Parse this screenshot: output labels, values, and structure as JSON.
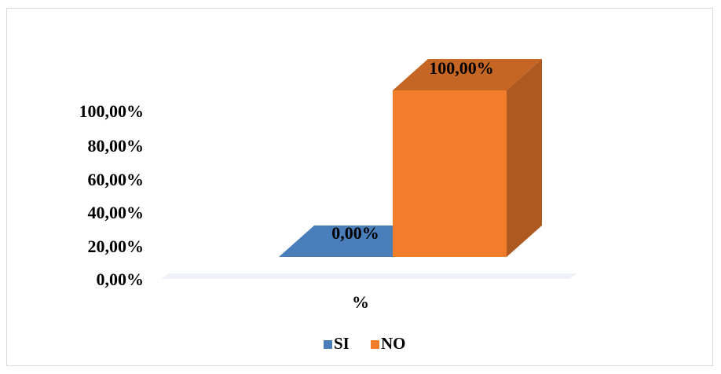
{
  "chart_data": {
    "type": "bar",
    "style": "3d-column",
    "categories": [
      "%"
    ],
    "series": [
      {
        "name": "SI",
        "values": [
          0.0
        ],
        "color": "#4a7ebb",
        "label": "0,00%"
      },
      {
        "name": "NO",
        "values": [
          100.0
        ],
        "color": "#f07c2c",
        "label": "100,00%"
      }
    ],
    "ylim": [
      0,
      100
    ],
    "y_ticks": [
      "0,00%",
      "20,00%",
      "40,00%",
      "60,00%",
      "80,00%",
      "100,00%"
    ],
    "grid": false,
    "legend_position": "bottom"
  }
}
